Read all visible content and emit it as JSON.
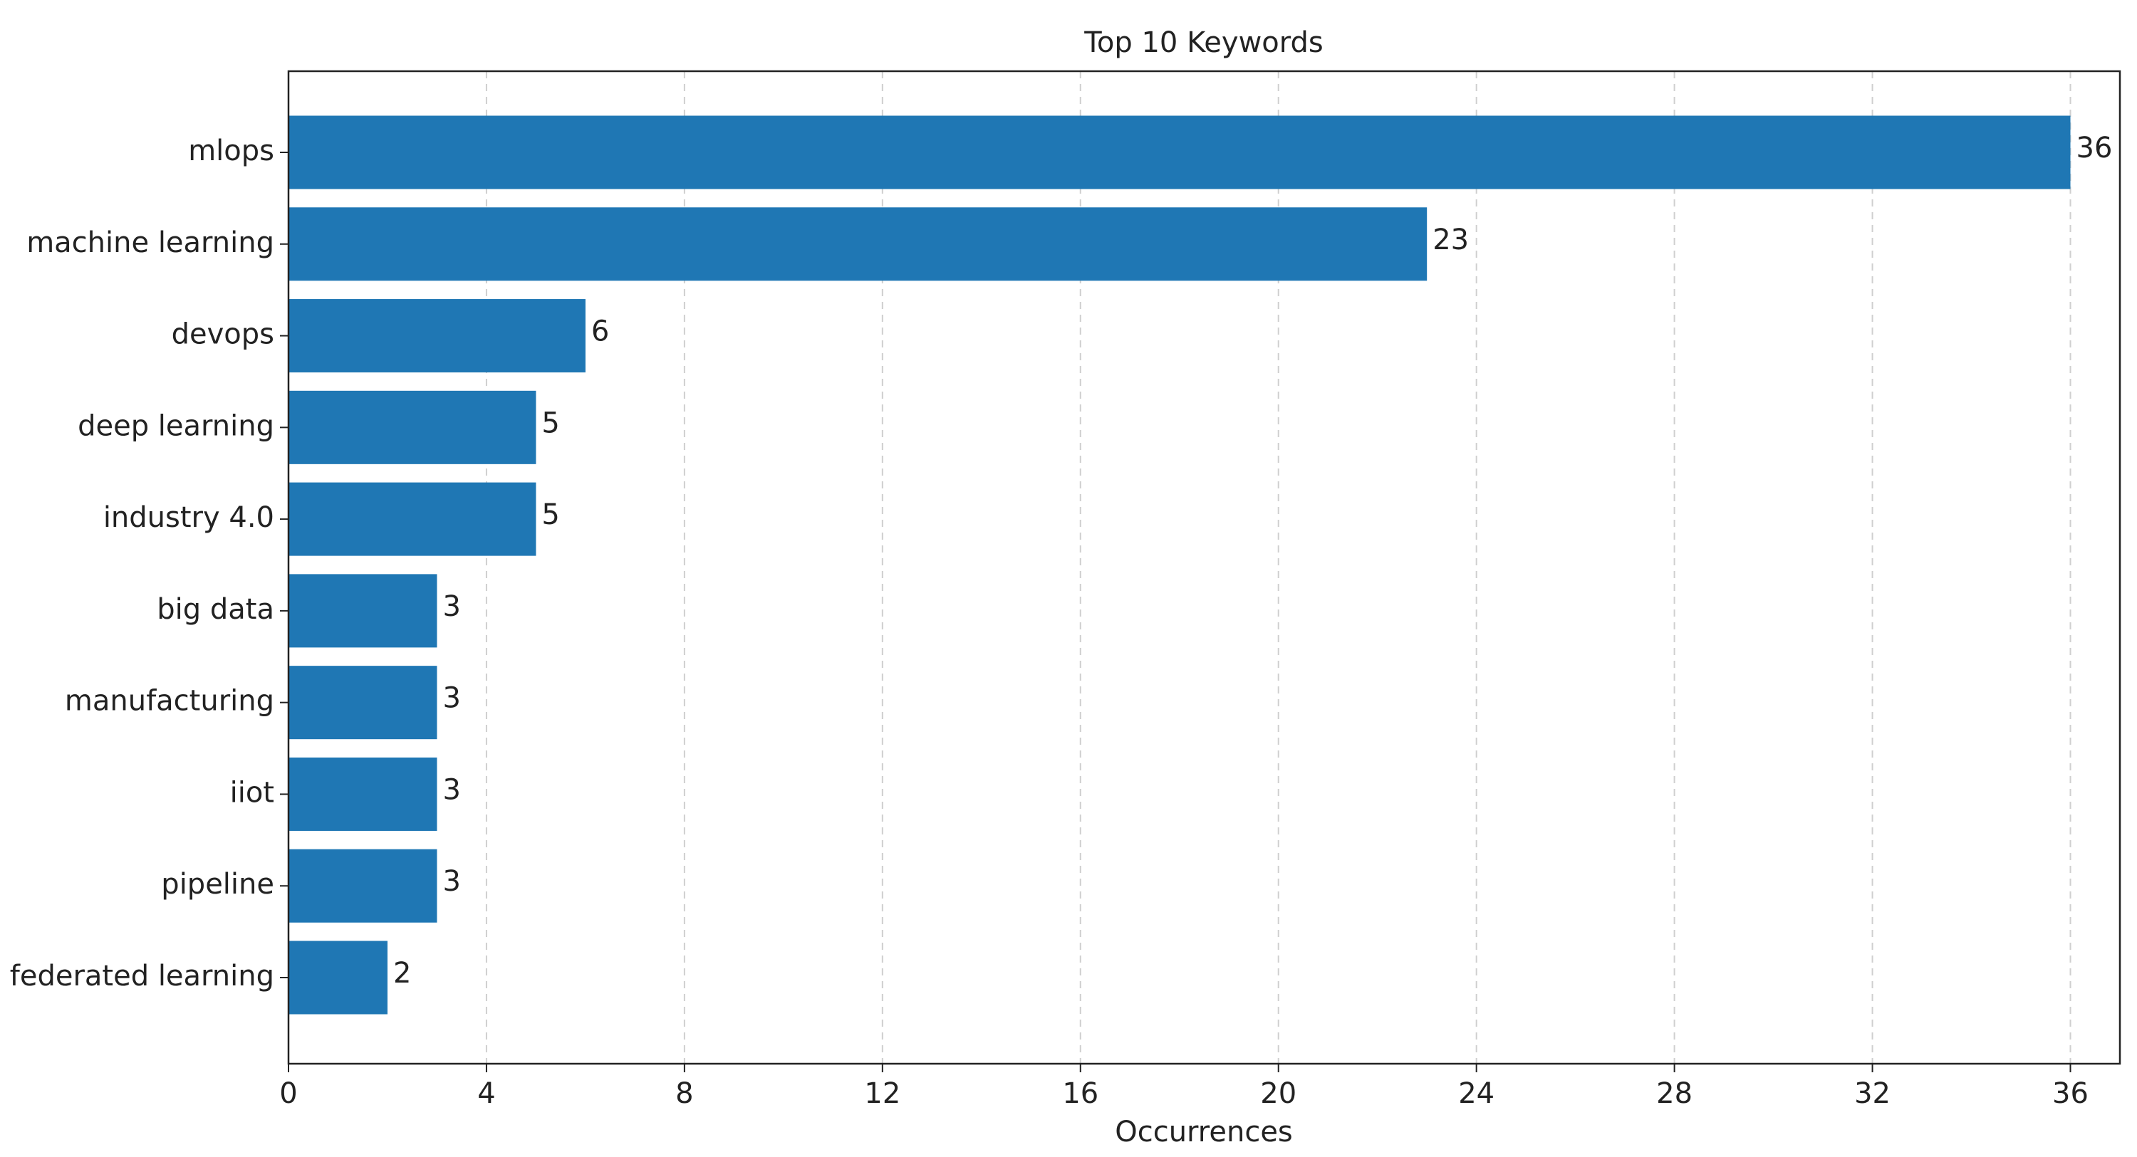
{
  "chart_data": {
    "type": "bar",
    "orientation": "horizontal",
    "title": "Top 10 Keywords",
    "x_label": "Occurrences",
    "categories": [
      "mlops",
      "machine learning",
      "devops",
      "deep learning",
      "industry 4.0",
      "big data",
      "manufacturing",
      "iiot",
      "pipeline",
      "federated learning"
    ],
    "values": [
      36,
      23,
      6,
      5,
      5,
      3,
      3,
      3,
      3,
      2
    ],
    "color": "#1f77b4",
    "xlim": [
      0,
      37
    ],
    "xticks": [
      0,
      4,
      8,
      12,
      16,
      20,
      24,
      28,
      32,
      36
    ],
    "grid": true
  }
}
